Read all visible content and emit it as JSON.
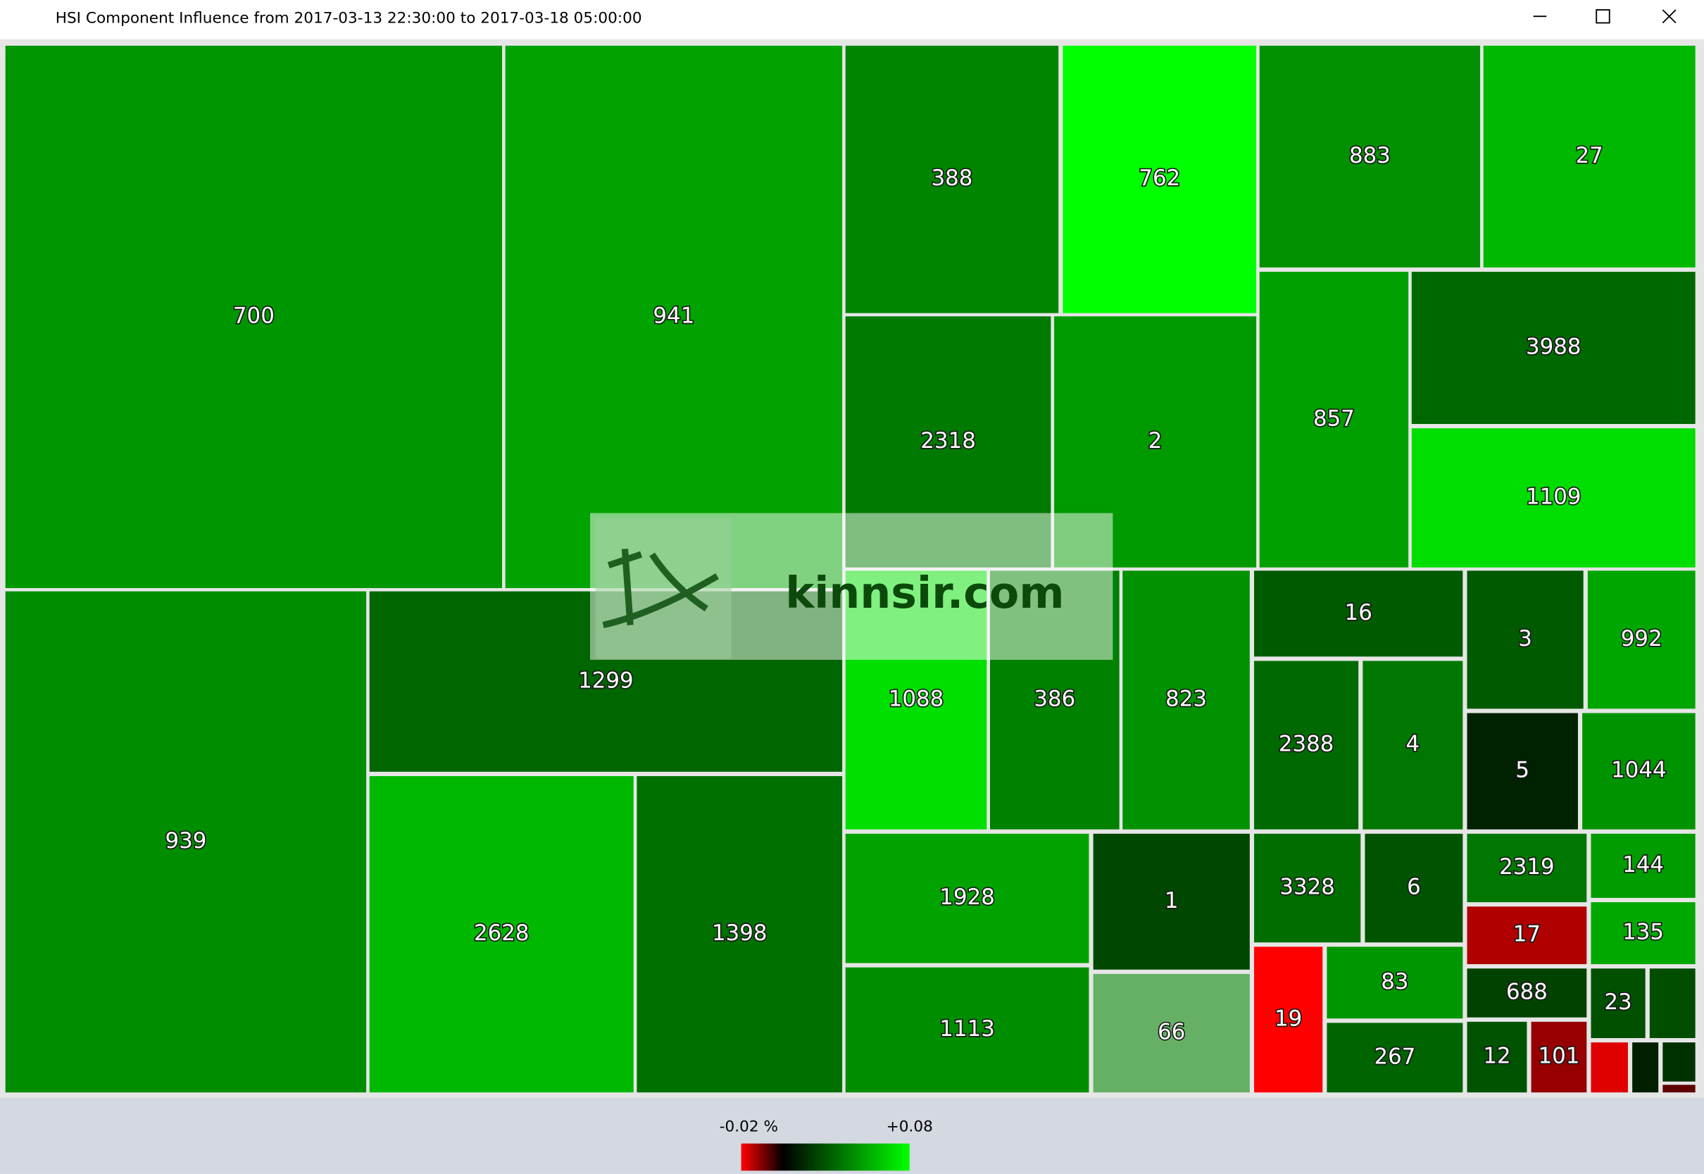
{
  "window": {
    "title": "HSI Component Influence from 2017-03-13 22:30:00 to 2017-03-18 05:00:00"
  },
  "tiles": [
    {
      "label": "700",
      "color": "#009600"
    },
    {
      "label": "941",
      "color": "#00a300"
    },
    {
      "label": "388",
      "color": "#008500"
    },
    {
      "label": "762",
      "color": "#00ff00"
    },
    {
      "label": "883",
      "color": "#009000"
    },
    {
      "label": "27",
      "color": "#00b800"
    },
    {
      "label": "2318",
      "color": "#007a00"
    },
    {
      "label": "2",
      "color": "#009a00"
    },
    {
      "label": "857",
      "color": "#00a000"
    },
    {
      "label": "3988",
      "color": "#006800"
    },
    {
      "label": "1109",
      "color": "#00dd00"
    },
    {
      "label": "939",
      "color": "#008e00"
    },
    {
      "label": "1299",
      "color": "#006700"
    },
    {
      "label": "2628",
      "color": "#00b800"
    },
    {
      "label": "1398",
      "color": "#007000"
    },
    {
      "label": "1088",
      "color": "#00e000"
    },
    {
      "label": "386",
      "color": "#008200"
    },
    {
      "label": "823",
      "color": "#009200"
    },
    {
      "label": "1928",
      "color": "#00a300"
    },
    {
      "label": "1",
      "color": "#004800"
    },
    {
      "label": "1113",
      "color": "#008d00"
    },
    {
      "label": "66",
      "color": "#66b066"
    },
    {
      "label": "16",
      "color": "#005a00"
    },
    {
      "label": "2388",
      "color": "#006a00"
    },
    {
      "label": "4",
      "color": "#007800"
    },
    {
      "label": "3",
      "color": "#005a00"
    },
    {
      "label": "992",
      "color": "#00a600"
    },
    {
      "label": "5",
      "color": "#002200"
    },
    {
      "label": "1044",
      "color": "#009300"
    },
    {
      "label": "3328",
      "color": "#006d00"
    },
    {
      "label": "6",
      "color": "#005300"
    },
    {
      "label": "19",
      "color": "#ff0000"
    },
    {
      "label": "83",
      "color": "#009600"
    },
    {
      "label": "267",
      "color": "#006500"
    },
    {
      "label": "2319",
      "color": "#007800"
    },
    {
      "label": "144",
      "color": "#009c00"
    },
    {
      "label": "17",
      "color": "#b00000"
    },
    {
      "label": "135",
      "color": "#00a800"
    },
    {
      "label": "688",
      "color": "#004300"
    },
    {
      "label": "23",
      "color": "#005000"
    },
    {
      "label": "12",
      "color": "#005300"
    },
    {
      "label": "101",
      "color": "#960000"
    }
  ],
  "watermark": "kinnsir.com",
  "legend": {
    "min_label": "-0.02 %",
    "max_label": "+0.08"
  }
}
